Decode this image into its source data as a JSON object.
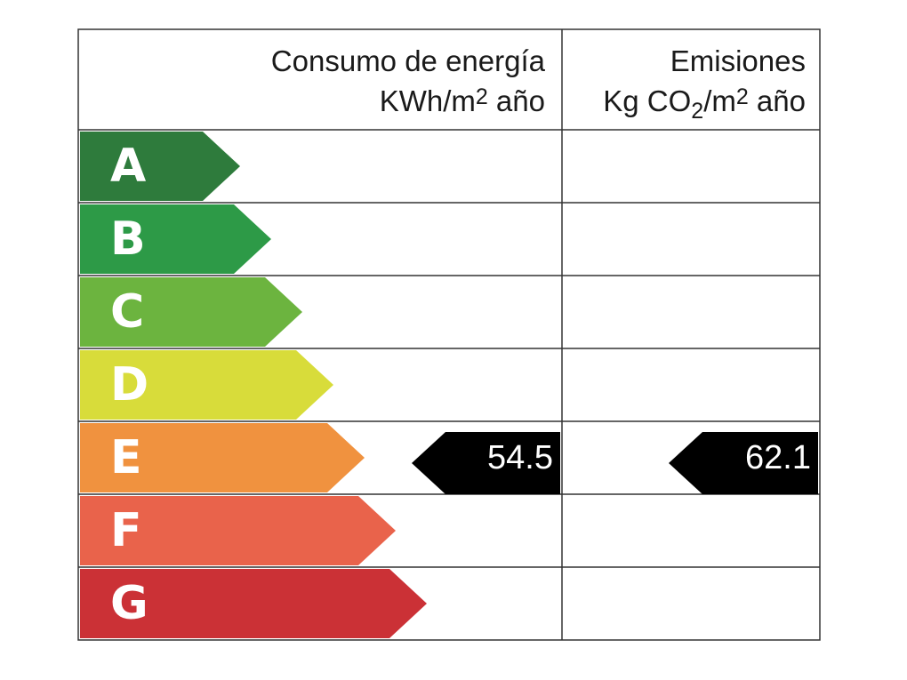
{
  "header": {
    "energy_title": "Consumo de energía",
    "energy_unit": [
      "KWh/m",
      "2",
      " año"
    ],
    "emissions_title": "Emisiones",
    "emissions_unit": [
      "Kg CO",
      "2",
      "/m",
      "2",
      " año"
    ]
  },
  "ratings": [
    {
      "letter": "A",
      "color": "#2e7b3c"
    },
    {
      "letter": "B",
      "color": "#2d9a47"
    },
    {
      "letter": "C",
      "color": "#6cb43f"
    },
    {
      "letter": "D",
      "color": "#d8dc3a"
    },
    {
      "letter": "E",
      "color": "#f0923f"
    },
    {
      "letter": "F",
      "color": "#e9634b"
    },
    {
      "letter": "G",
      "color": "#cb3136"
    }
  ],
  "energy": {
    "rating": "E",
    "value": 54.5
  },
  "emissions": {
    "rating": "E",
    "value": 62.1
  }
}
